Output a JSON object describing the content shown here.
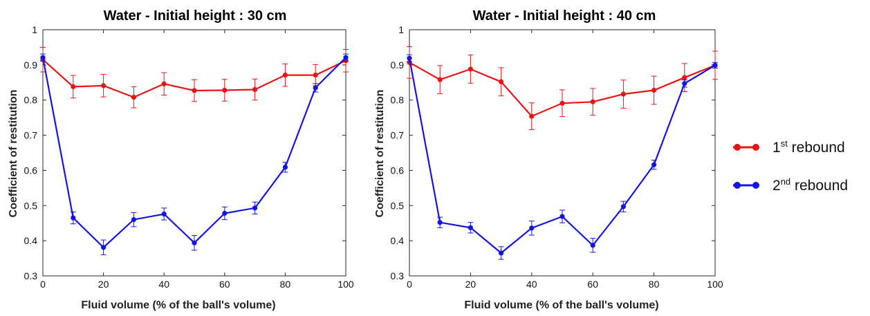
{
  "chart_data": [
    {
      "type": "line",
      "title": "Water - Initial height : 30 cm",
      "xlabel": "Fluid volume (% of the ball's volume)",
      "ylabel": "Coefficient of restitution",
      "xlim": [
        0,
        100
      ],
      "ylim": [
        0.3,
        1
      ],
      "xticks": [
        "0",
        "20",
        "40",
        "60",
        "80",
        "100"
      ],
      "yticks": [
        "0.3",
        "0.4",
        "0.5",
        "0.6",
        "0.7",
        "0.8",
        "0.9",
        "1"
      ],
      "x": [
        0,
        10,
        20,
        30,
        40,
        50,
        60,
        70,
        80,
        90,
        100
      ],
      "series": [
        {
          "name": "1st rebound",
          "color": "#e81414",
          "values": [
            0.915,
            0.838,
            0.841,
            0.808,
            0.846,
            0.827,
            0.828,
            0.83,
            0.871,
            0.871,
            0.912
          ],
          "errors": [
            0.035,
            0.032,
            0.032,
            0.03,
            0.032,
            0.031,
            0.031,
            0.03,
            0.032,
            0.03,
            0.032
          ]
        },
        {
          "name": "2nd rebound",
          "color": "#1414e0",
          "values": [
            0.921,
            0.465,
            0.381,
            0.46,
            0.476,
            0.394,
            0.478,
            0.493,
            0.609,
            0.835,
            0.921
          ],
          "errors": [
            0.01,
            0.017,
            0.021,
            0.02,
            0.017,
            0.021,
            0.018,
            0.017,
            0.014,
            0.012,
            0.01
          ]
        }
      ]
    },
    {
      "type": "line",
      "title": "Water - Initial height : 40 cm",
      "xlabel": "Fluid volume (% of the ball's volume)",
      "ylabel": "Coefficient of restitution",
      "xlim": [
        0,
        100
      ],
      "ylim": [
        0.3,
        1
      ],
      "xticks": [
        "0",
        "20",
        "40",
        "60",
        "80",
        "100"
      ],
      "yticks": [
        "0.3",
        "0.4",
        "0.5",
        "0.6",
        "0.7",
        "0.8",
        "0.9",
        "1"
      ],
      "x": [
        0,
        10,
        20,
        30,
        40,
        50,
        60,
        70,
        80,
        90,
        100
      ],
      "series": [
        {
          "name": "1st rebound",
          "color": "#e81414",
          "values": [
            0.907,
            0.858,
            0.888,
            0.852,
            0.754,
            0.791,
            0.795,
            0.817,
            0.828,
            0.864,
            0.899
          ],
          "errors": [
            0.045,
            0.04,
            0.04,
            0.04,
            0.038,
            0.038,
            0.038,
            0.04,
            0.04,
            0.04,
            0.04
          ]
        },
        {
          "name": "2nd rebound",
          "color": "#1414e0",
          "values": [
            0.919,
            0.452,
            0.437,
            0.365,
            0.436,
            0.469,
            0.387,
            0.497,
            0.616,
            0.847,
            0.899
          ],
          "errors": [
            0.01,
            0.015,
            0.015,
            0.018,
            0.02,
            0.018,
            0.02,
            0.015,
            0.013,
            0.01,
            0.008
          ]
        }
      ]
    }
  ],
  "legend": {
    "items": [
      {
        "base": "1",
        "sup": "st",
        "rest": " rebound",
        "color": "#e81414"
      },
      {
        "base": "2",
        "sup": "nd",
        "rest": " rebound",
        "color": "#1414e0"
      }
    ]
  }
}
